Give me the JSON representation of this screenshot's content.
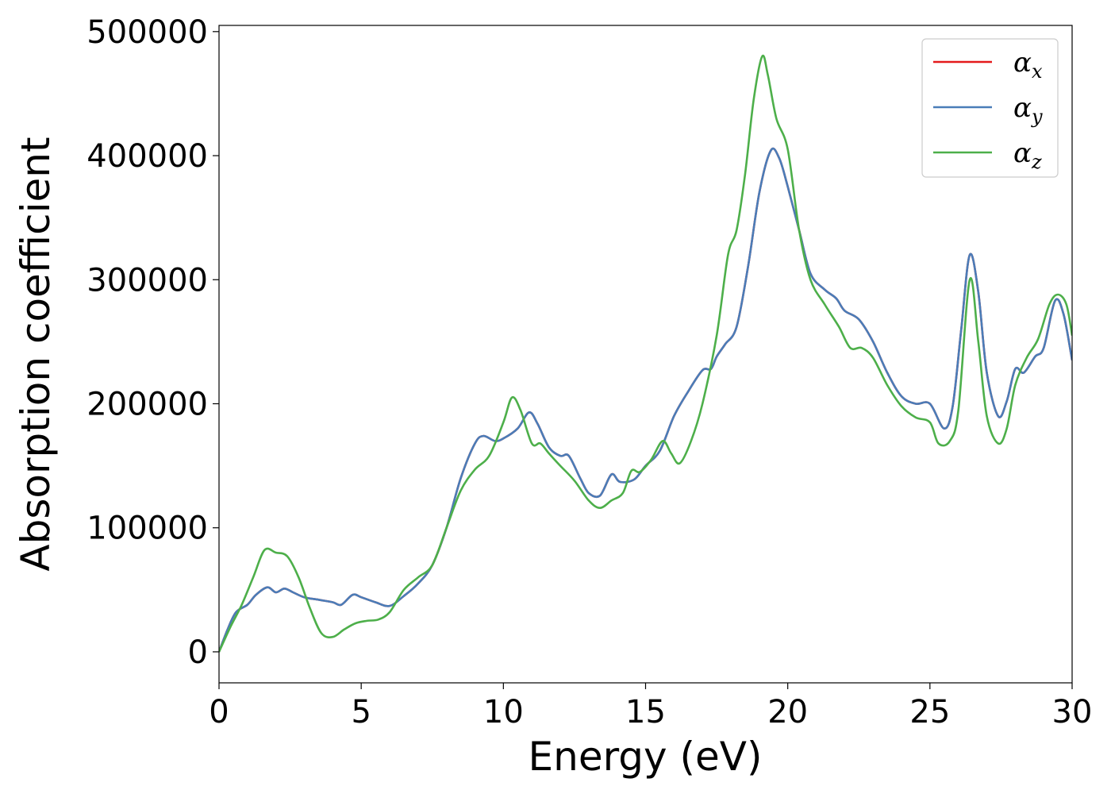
{
  "chart_data": {
    "type": "line",
    "title": "",
    "xlabel": "Energy (eV)",
    "ylabel": "Absorption coefficient",
    "xlim": [
      0,
      30
    ],
    "ylim": [
      -25000,
      505000
    ],
    "xticks": [
      0,
      5,
      10,
      15,
      20,
      25,
      30
    ],
    "yticks": [
      0,
      100000,
      200000,
      300000,
      400000,
      500000
    ],
    "grid": false,
    "legend_position": "top-right",
    "series": [
      {
        "name": "α",
        "sub": "x",
        "color": "#e41a1c",
        "points": [
          [
            0,
            0
          ],
          [
            0.3,
            18000
          ],
          [
            0.6,
            32000
          ],
          [
            1,
            38000
          ],
          [
            1.3,
            46000
          ],
          [
            1.7,
            52000
          ],
          [
            2,
            48000
          ],
          [
            2.3,
            51000
          ],
          [
            2.6,
            48000
          ],
          [
            3,
            44000
          ],
          [
            3.5,
            42000
          ],
          [
            4,
            40000
          ],
          [
            4.3,
            38000
          ],
          [
            4.7,
            46000
          ],
          [
            5,
            44000
          ],
          [
            5.5,
            40000
          ],
          [
            6,
            37000
          ],
          [
            6.5,
            45000
          ],
          [
            7,
            55000
          ],
          [
            7.5,
            70000
          ],
          [
            8,
            100000
          ],
          [
            8.5,
            140000
          ],
          [
            9,
            168000
          ],
          [
            9.3,
            174000
          ],
          [
            9.7,
            170000
          ],
          [
            10,
            172000
          ],
          [
            10.5,
            180000
          ],
          [
            10.9,
            193000
          ],
          [
            11.2,
            184000
          ],
          [
            11.6,
            165000
          ],
          [
            12,
            158000
          ],
          [
            12.3,
            158000
          ],
          [
            12.7,
            140000
          ],
          [
            13,
            128000
          ],
          [
            13.4,
            126000
          ],
          [
            13.8,
            143000
          ],
          [
            14.1,
            137000
          ],
          [
            14.6,
            139000
          ],
          [
            15,
            150000
          ],
          [
            15.5,
            162000
          ],
          [
            16,
            190000
          ],
          [
            16.5,
            210000
          ],
          [
            17,
            227000
          ],
          [
            17.3,
            228000
          ],
          [
            17.5,
            238000
          ],
          [
            17.8,
            248000
          ],
          [
            18.2,
            262000
          ],
          [
            18.6,
            310000
          ],
          [
            19,
            370000
          ],
          [
            19.4,
            404000
          ],
          [
            19.7,
            398000
          ],
          [
            20,
            375000
          ],
          [
            20.4,
            340000
          ],
          [
            20.8,
            305000
          ],
          [
            21.3,
            292000
          ],
          [
            21.7,
            285000
          ],
          [
            22,
            275000
          ],
          [
            22.5,
            268000
          ],
          [
            23,
            250000
          ],
          [
            23.5,
            225000
          ],
          [
            24,
            206000
          ],
          [
            24.5,
            200000
          ],
          [
            25,
            200000
          ],
          [
            25.5,
            180000
          ],
          [
            25.8,
            198000
          ],
          [
            26.1,
            260000
          ],
          [
            26.4,
            320000
          ],
          [
            26.7,
            290000
          ],
          [
            27,
            225000
          ],
          [
            27.4,
            190000
          ],
          [
            27.7,
            202000
          ],
          [
            28,
            228000
          ],
          [
            28.3,
            225000
          ],
          [
            28.7,
            238000
          ],
          [
            29,
            245000
          ],
          [
            29.4,
            283000
          ],
          [
            29.7,
            272000
          ],
          [
            30,
            235000
          ]
        ]
      },
      {
        "name": "α",
        "sub": "y",
        "color": "#4a7db8",
        "points": [
          [
            0,
            0
          ],
          [
            0.3,
            18000
          ],
          [
            0.6,
            32000
          ],
          [
            1,
            38000
          ],
          [
            1.3,
            46000
          ],
          [
            1.7,
            52000
          ],
          [
            2,
            48000
          ],
          [
            2.3,
            51000
          ],
          [
            2.6,
            48000
          ],
          [
            3,
            44000
          ],
          [
            3.5,
            42000
          ],
          [
            4,
            40000
          ],
          [
            4.3,
            38000
          ],
          [
            4.7,
            46000
          ],
          [
            5,
            44000
          ],
          [
            5.5,
            40000
          ],
          [
            6,
            37000
          ],
          [
            6.5,
            45000
          ],
          [
            7,
            55000
          ],
          [
            7.5,
            70000
          ],
          [
            8,
            100000
          ],
          [
            8.5,
            140000
          ],
          [
            9,
            168000
          ],
          [
            9.3,
            174000
          ],
          [
            9.7,
            170000
          ],
          [
            10,
            172000
          ],
          [
            10.5,
            180000
          ],
          [
            10.9,
            193000
          ],
          [
            11.2,
            184000
          ],
          [
            11.6,
            165000
          ],
          [
            12,
            158000
          ],
          [
            12.3,
            158000
          ],
          [
            12.7,
            140000
          ],
          [
            13,
            128000
          ],
          [
            13.4,
            126000
          ],
          [
            13.8,
            143000
          ],
          [
            14.1,
            137000
          ],
          [
            14.6,
            139000
          ],
          [
            15,
            150000
          ],
          [
            15.5,
            162000
          ],
          [
            16,
            190000
          ],
          [
            16.5,
            210000
          ],
          [
            17,
            227000
          ],
          [
            17.3,
            228000
          ],
          [
            17.5,
            238000
          ],
          [
            17.8,
            248000
          ],
          [
            18.2,
            262000
          ],
          [
            18.6,
            310000
          ],
          [
            19,
            370000
          ],
          [
            19.4,
            404000
          ],
          [
            19.7,
            398000
          ],
          [
            20,
            375000
          ],
          [
            20.4,
            340000
          ],
          [
            20.8,
            305000
          ],
          [
            21.3,
            292000
          ],
          [
            21.7,
            285000
          ],
          [
            22,
            275000
          ],
          [
            22.5,
            268000
          ],
          [
            23,
            250000
          ],
          [
            23.5,
            225000
          ],
          [
            24,
            206000
          ],
          [
            24.5,
            200000
          ],
          [
            25,
            200000
          ],
          [
            25.5,
            180000
          ],
          [
            25.8,
            198000
          ],
          [
            26.1,
            260000
          ],
          [
            26.4,
            320000
          ],
          [
            26.7,
            290000
          ],
          [
            27,
            225000
          ],
          [
            27.4,
            190000
          ],
          [
            27.7,
            202000
          ],
          [
            28,
            228000
          ],
          [
            28.3,
            225000
          ],
          [
            28.7,
            238000
          ],
          [
            29,
            245000
          ],
          [
            29.4,
            283000
          ],
          [
            29.7,
            272000
          ],
          [
            30,
            235000
          ]
        ]
      },
      {
        "name": "α",
        "sub": "z",
        "color": "#4daf4a",
        "points": [
          [
            0,
            0
          ],
          [
            0.4,
            20000
          ],
          [
            0.8,
            38000
          ],
          [
            1.2,
            60000
          ],
          [
            1.6,
            82000
          ],
          [
            2,
            80000
          ],
          [
            2.4,
            77000
          ],
          [
            2.8,
            60000
          ],
          [
            3.2,
            35000
          ],
          [
            3.6,
            15000
          ],
          [
            4,
            12000
          ],
          [
            4.4,
            18000
          ],
          [
            4.8,
            23000
          ],
          [
            5.2,
            25000
          ],
          [
            5.6,
            26000
          ],
          [
            6,
            32000
          ],
          [
            6.5,
            50000
          ],
          [
            7,
            60000
          ],
          [
            7.5,
            70000
          ],
          [
            8,
            100000
          ],
          [
            8.5,
            130000
          ],
          [
            9,
            147000
          ],
          [
            9.5,
            158000
          ],
          [
            10,
            185000
          ],
          [
            10.3,
            205000
          ],
          [
            10.6,
            195000
          ],
          [
            11,
            168000
          ],
          [
            11.3,
            168000
          ],
          [
            11.6,
            160000
          ],
          [
            12,
            150000
          ],
          [
            12.5,
            138000
          ],
          [
            13,
            122000
          ],
          [
            13.4,
            116000
          ],
          [
            13.8,
            122000
          ],
          [
            14.2,
            128000
          ],
          [
            14.5,
            146000
          ],
          [
            14.8,
            145000
          ],
          [
            15.2,
            155000
          ],
          [
            15.6,
            170000
          ],
          [
            15.9,
            160000
          ],
          [
            16.2,
            152000
          ],
          [
            16.6,
            170000
          ],
          [
            17,
            200000
          ],
          [
            17.5,
            255000
          ],
          [
            17.9,
            320000
          ],
          [
            18.2,
            340000
          ],
          [
            18.5,
            385000
          ],
          [
            18.8,
            445000
          ],
          [
            19.1,
            480000
          ],
          [
            19.3,
            465000
          ],
          [
            19.6,
            430000
          ],
          [
            20,
            405000
          ],
          [
            20.4,
            340000
          ],
          [
            20.8,
            300000
          ],
          [
            21.3,
            280000
          ],
          [
            21.8,
            262000
          ],
          [
            22.2,
            245000
          ],
          [
            22.6,
            245000
          ],
          [
            23,
            237000
          ],
          [
            23.5,
            215000
          ],
          [
            24,
            198000
          ],
          [
            24.5,
            189000
          ],
          [
            25,
            185000
          ],
          [
            25.3,
            168000
          ],
          [
            25.7,
            170000
          ],
          [
            26,
            195000
          ],
          [
            26.4,
            300000
          ],
          [
            26.7,
            250000
          ],
          [
            27,
            190000
          ],
          [
            27.4,
            168000
          ],
          [
            27.7,
            180000
          ],
          [
            28,
            215000
          ],
          [
            28.4,
            237000
          ],
          [
            28.8,
            252000
          ],
          [
            29.2,
            280000
          ],
          [
            29.5,
            288000
          ],
          [
            29.8,
            280000
          ],
          [
            30,
            255000
          ]
        ]
      }
    ]
  }
}
